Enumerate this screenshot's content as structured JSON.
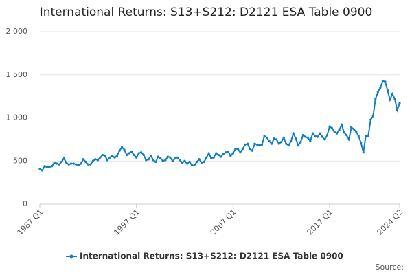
{
  "chart_data": {
    "type": "line",
    "title": "International Returns: S13+S212: D2121 ESA Table 0900",
    "source": "Source:",
    "categories": [
      "1987 Q1",
      null,
      null,
      null,
      null,
      null,
      null,
      null,
      null,
      null,
      null,
      null,
      null,
      null,
      null,
      null,
      null,
      null,
      null,
      null,
      null,
      null,
      null,
      null,
      null,
      null,
      null,
      null,
      null,
      null,
      null,
      null,
      null,
      null,
      null,
      null,
      null,
      null,
      null,
      null,
      "1997 Q1",
      null,
      null,
      null,
      null,
      null,
      null,
      null,
      null,
      null,
      null,
      null,
      null,
      null,
      null,
      null,
      null,
      null,
      null,
      null,
      null,
      null,
      null,
      null,
      null,
      null,
      null,
      null,
      null,
      null,
      null,
      null,
      null,
      null,
      null,
      null,
      null,
      null,
      null,
      null,
      "2007 Q1",
      null,
      null,
      null,
      null,
      null,
      null,
      null,
      null,
      null,
      null,
      null,
      null,
      null,
      null,
      null,
      null,
      null,
      null,
      null,
      null,
      null,
      null,
      null,
      null,
      null,
      null,
      null,
      null,
      null,
      null,
      null,
      null,
      null,
      null,
      null,
      null,
      null,
      null,
      null,
      "2017 Q1",
      null,
      null,
      null,
      null,
      null,
      null,
      null,
      null,
      null,
      null,
      null,
      null,
      null,
      null,
      null,
      null,
      null,
      null,
      null,
      null,
      null,
      null,
      null,
      null,
      null,
      null,
      null,
      null,
      "2024 Q2"
    ],
    "series": [
      {
        "name": "International Returns: S13+S212: D2121 ESA Table 0900",
        "color": "#0f7dc2",
        "values": [
          410,
          390,
          440,
          430,
          430,
          440,
          480,
          470,
          460,
          490,
          530,
          480,
          460,
          470,
          470,
          460,
          450,
          470,
          520,
          490,
          460,
          460,
          500,
          520,
          510,
          540,
          570,
          560,
          510,
          540,
          560,
          540,
          560,
          620,
          660,
          630,
          570,
          590,
          610,
          570,
          540,
          590,
          600,
          570,
          510,
          520,
          560,
          510,
          490,
          550,
          530,
          500,
          510,
          550,
          540,
          500,
          530,
          540,
          510,
          480,
          500,
          470,
          490,
          450,
          450,
          490,
          520,
          480,
          490,
          540,
          590,
          530,
          540,
          590,
          570,
          550,
          580,
          600,
          610,
          560,
          590,
          640,
          640,
          600,
          640,
          690,
          700,
          640,
          620,
          700,
          690,
          680,
          690,
          790,
          770,
          730,
          700,
          760,
          750,
          700,
          720,
          770,
          700,
          680,
          730,
          820,
          760,
          680,
          720,
          800,
          780,
          770,
          730,
          820,
          790,
          780,
          820,
          780,
          750,
          800,
          900,
          880,
          840,
          820,
          860,
          920,
          830,
          800,
          750,
          890,
          870,
          840,
          790,
          710,
          600,
          790,
          790,
          980,
          1020,
          1220,
          1300,
          1350,
          1430,
          1420,
          1320,
          1210,
          1280,
          1220,
          1090,
          1170
        ]
      }
    ],
    "ylim": [
      0,
      2000
    ],
    "yticks": [
      0,
      500,
      {
        "value": 1000,
        "label": "1 000"
      },
      {
        "value": 1500,
        "label": "1 500"
      },
      {
        "value": 2000,
        "label": "2 000"
      }
    ],
    "grid": true,
    "legend": "bottom"
  }
}
